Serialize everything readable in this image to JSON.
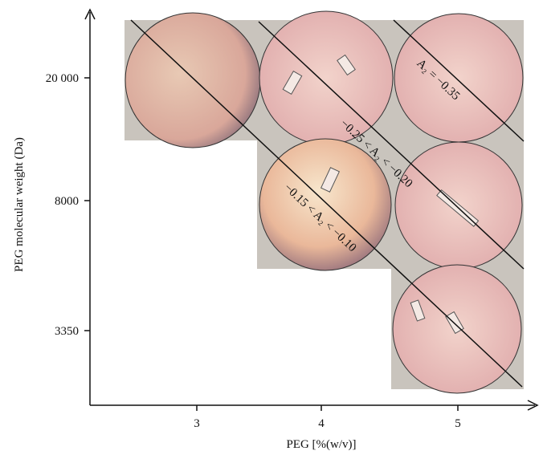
{
  "figure": {
    "x_axis": {
      "label": "PEG [%(w/v)]",
      "ticks": [
        "3",
        "4",
        "5"
      ]
    },
    "y_axis": {
      "label": "PEG molecular weight (Da)",
      "ticks": [
        "20 000",
        "8000",
        "3350"
      ]
    },
    "annotations": [
      "A₂ = −0.35",
      "−0.25 < A₂ < −0.20",
      "−0.15 < A₂ < −0.10"
    ]
  }
}
